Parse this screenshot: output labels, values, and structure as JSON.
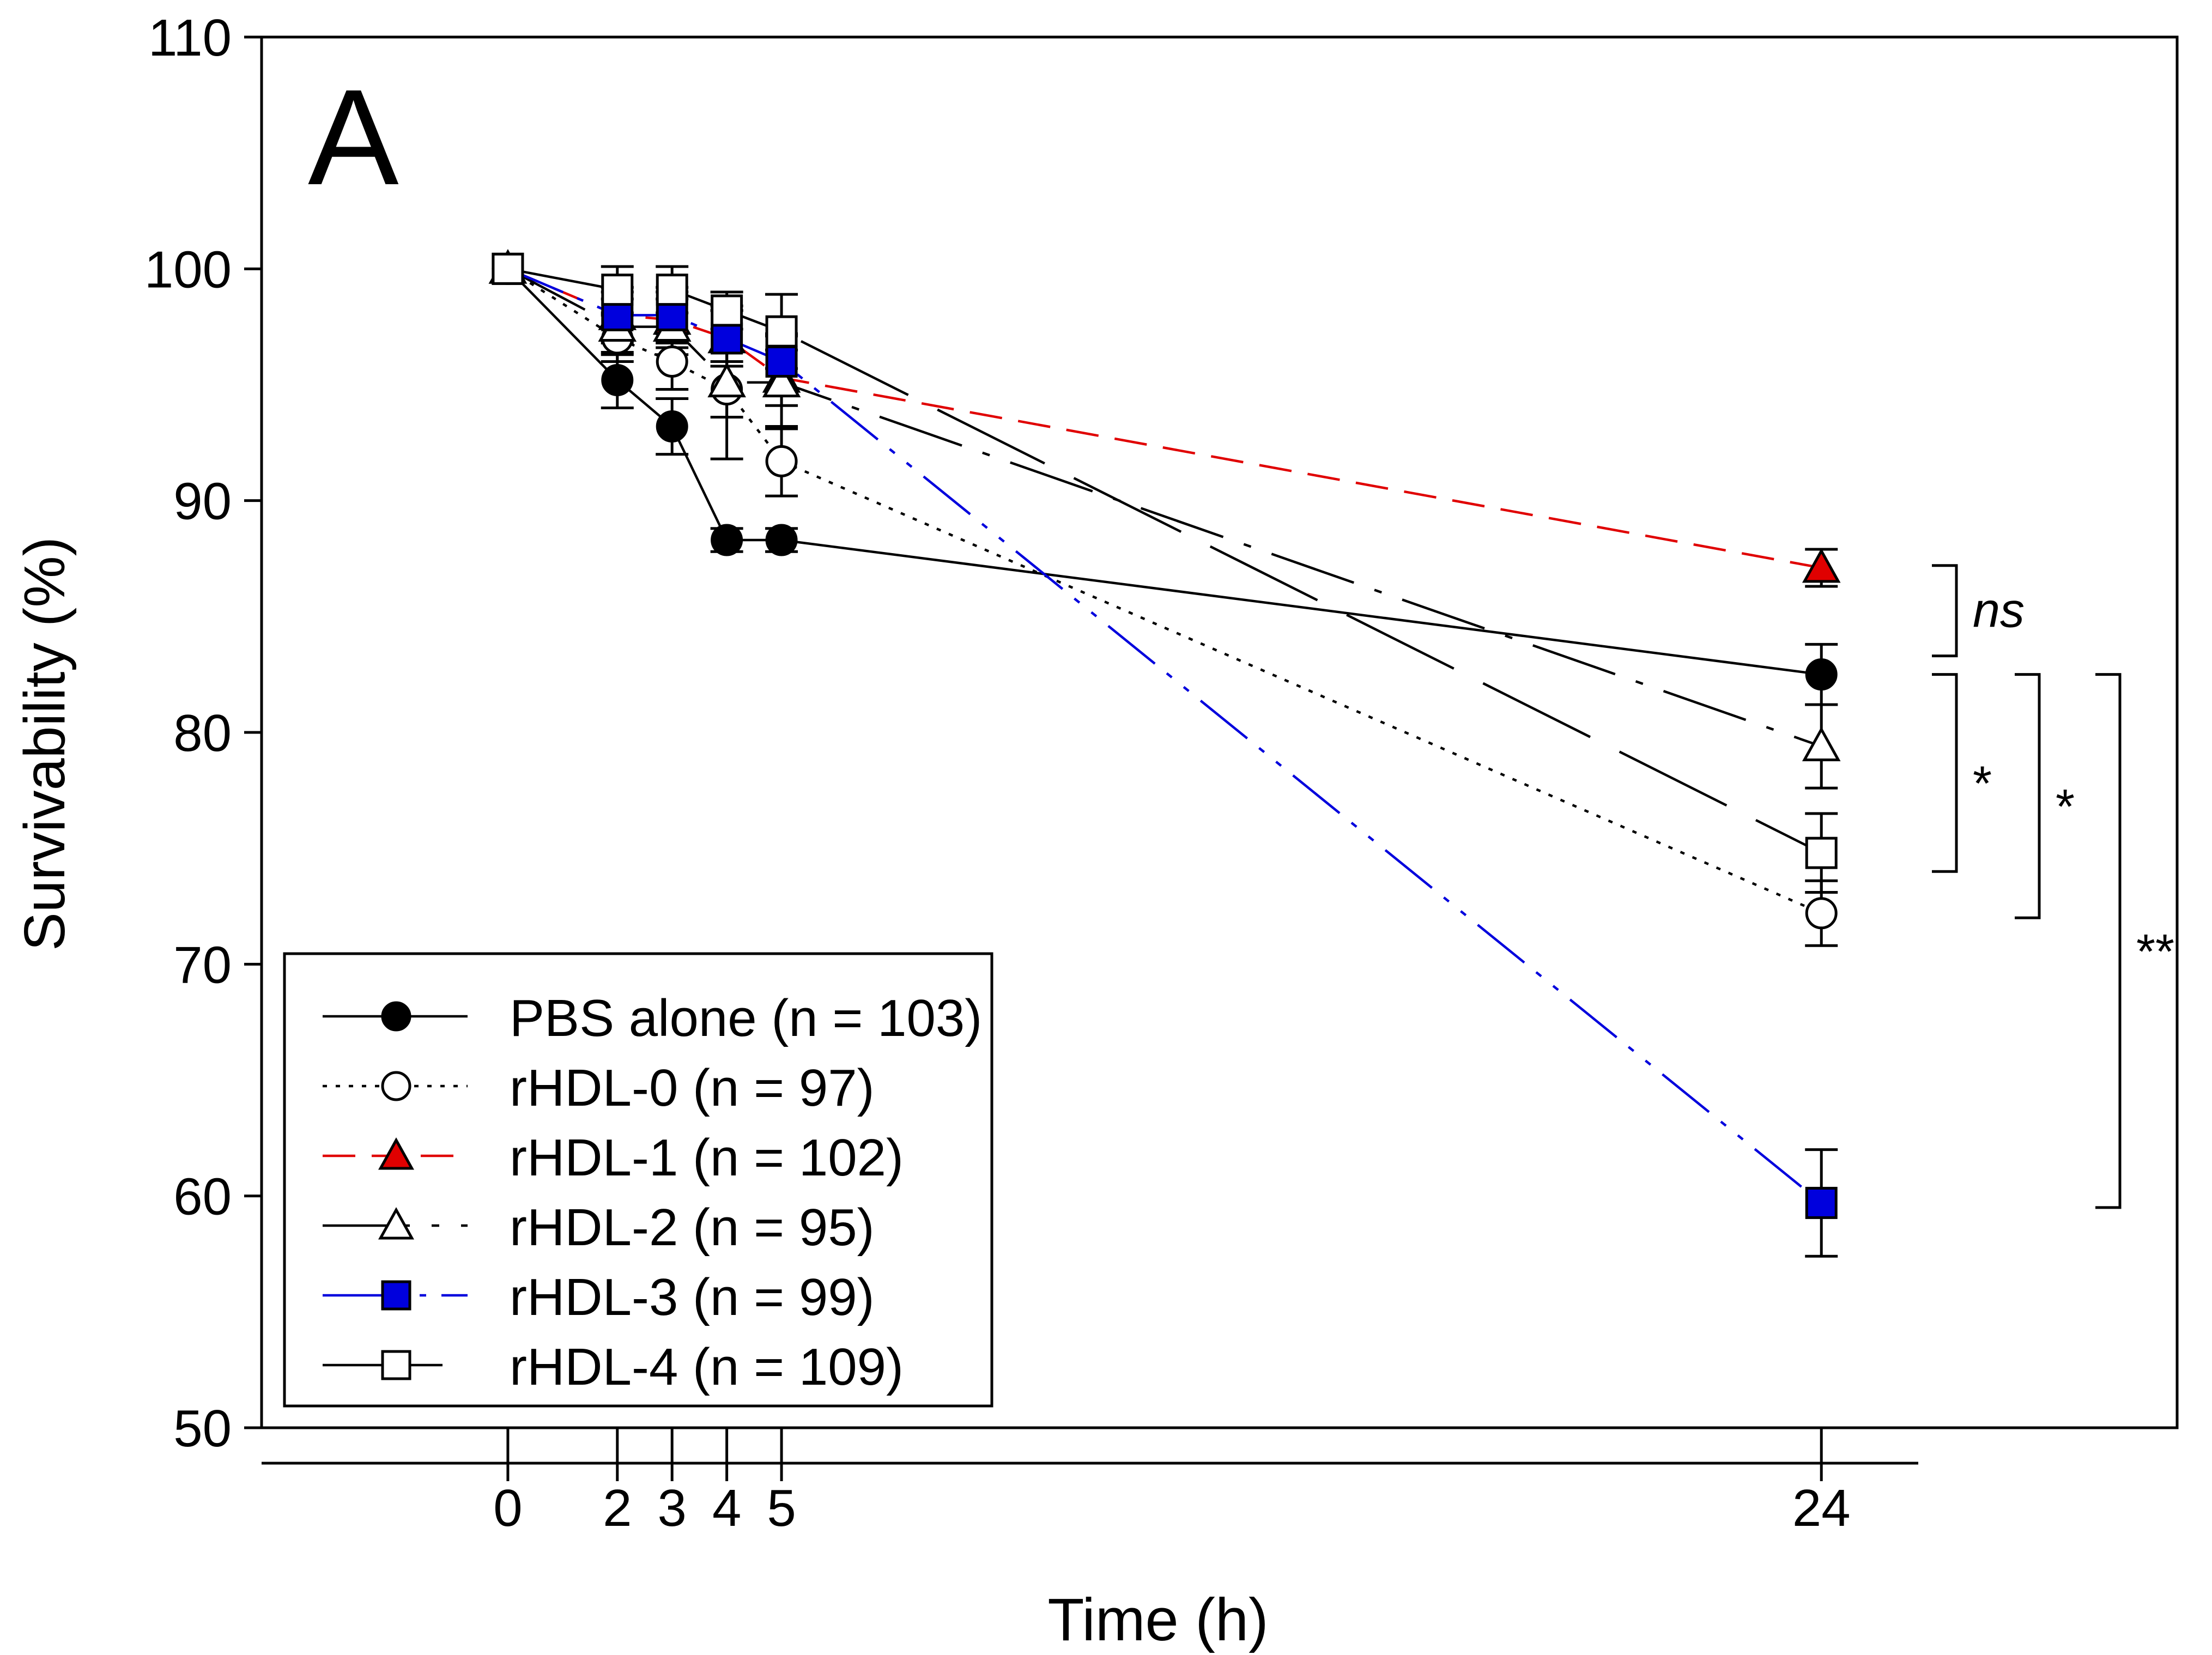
{
  "chart_data": {
    "type": "line",
    "panel_label": "A",
    "xlabel": "Time (h)",
    "ylabel": "Survivability (%)",
    "xlim": [
      -4.5,
      30.5
    ],
    "ylim": [
      50,
      110
    ],
    "x_ticks": [
      0,
      2,
      3,
      4,
      5,
      24
    ],
    "y_ticks": [
      50,
      60,
      70,
      80,
      90,
      100,
      110
    ],
    "x": [
      0,
      2,
      3,
      4,
      5,
      24
    ],
    "series": [
      {
        "name": "PBS alone (n = 103)",
        "color": "#000000",
        "marker": "circle-filled",
        "line": "solid",
        "values": [
          100,
          95.2,
          93.2,
          88.3,
          88.3,
          82.5
        ],
        "errors": [
          0,
          1.2,
          1.2,
          0.5,
          0.5,
          1.3
        ]
      },
      {
        "name": "rHDL-0 (n = 97)",
        "color": "#000000",
        "marker": "circle-open",
        "line": "dotted",
        "values": [
          100,
          97.0,
          96.0,
          94.8,
          91.7,
          72.2
        ],
        "errors": [
          0,
          1.0,
          1.2,
          1.2,
          1.5,
          1.4
        ]
      },
      {
        "name": "rHDL-1 (n = 102)",
        "color": "#e00000",
        "marker": "triangle-filled",
        "line": "dashed",
        "values": [
          100,
          98.0,
          97.8,
          97.0,
          95.3,
          87.1
        ],
        "errors": [
          0,
          1.0,
          1.2,
          1.2,
          1.2,
          0.8
        ]
      },
      {
        "name": "rHDL-2 (n = 95)",
        "color": "#000000",
        "marker": "triangle-open",
        "line": "dashdot",
        "values": [
          100,
          97.5,
          97.5,
          95.1,
          95.1,
          79.4
        ],
        "errors": [
          0,
          1.2,
          1.2,
          3.3,
          2.0,
          1.8
        ]
      },
      {
        "name": "rHDL-3 (n = 99)",
        "color": "#0000dd",
        "marker": "square-filled",
        "line": "dashdotdot",
        "values": [
          100,
          98.0,
          98.0,
          97.0,
          96.0,
          59.7
        ],
        "errors": [
          0,
          1.2,
          1.2,
          1.2,
          1.2,
          2.3
        ]
      },
      {
        "name": "rHDL-4 (n = 109)",
        "color": "#000000",
        "marker": "square-open",
        "line": "longdash",
        "values": [
          100,
          99.1,
          99.1,
          98.2,
          97.3,
          74.8
        ],
        "errors": [
          0,
          1.0,
          1.0,
          0.8,
          1.6,
          1.7
        ]
      }
    ],
    "significance": [
      {
        "label": "ns",
        "italic": true,
        "from": 87.2,
        "to": 83.3,
        "level": 1
      },
      {
        "label": "*",
        "italic": false,
        "from": 82.5,
        "to": 74.0,
        "level": 1
      },
      {
        "label": "*",
        "italic": false,
        "from": 82.5,
        "to": 72.0,
        "level": 2
      },
      {
        "label": "**",
        "italic": false,
        "from": 82.5,
        "to": 59.5,
        "level": 3
      }
    ],
    "legend_position": "bottom-left",
    "grid": false
  }
}
